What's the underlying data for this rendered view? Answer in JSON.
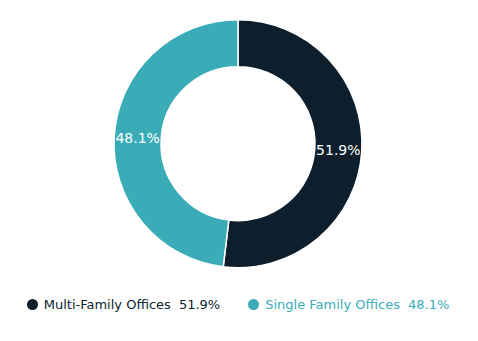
{
  "chart_data": {
    "type": "pie",
    "categories": [
      "Multi-Family Offices",
      "Single Family Offices"
    ],
    "values": [
      51.9,
      48.1
    ],
    "value_labels": [
      "51.9%",
      "48.1%"
    ],
    "colors": [
      "#0d1f2d",
      "#3aacb8"
    ],
    "data_labels": true,
    "legend": "bottom"
  }
}
